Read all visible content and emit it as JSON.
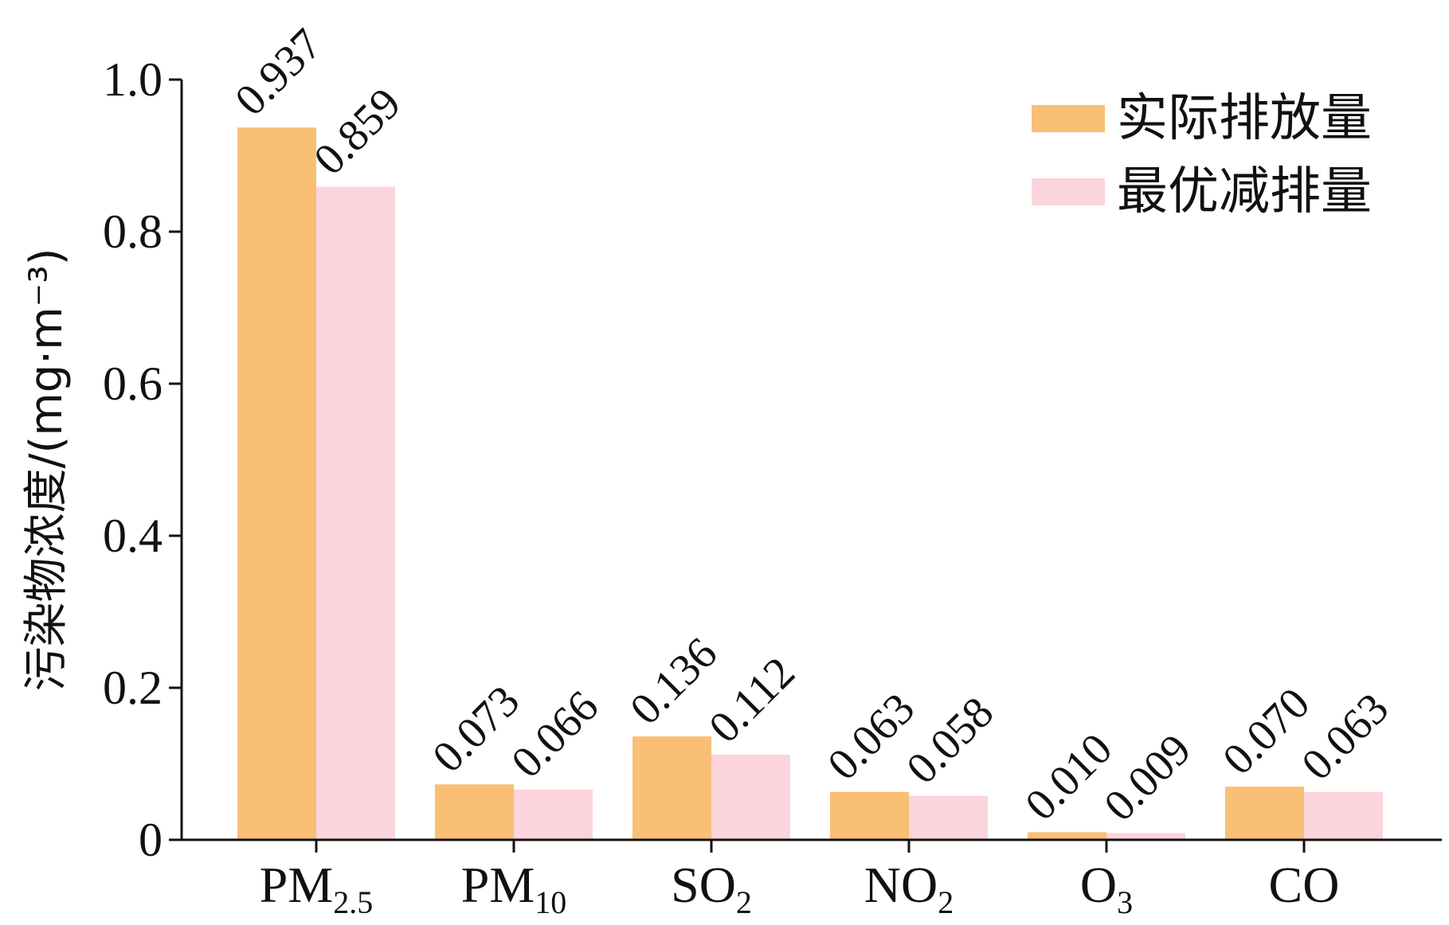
{
  "chart_data": {
    "type": "bar",
    "categories": [
      {
        "main": "PM",
        "sub": "2.5"
      },
      {
        "main": "PM",
        "sub": "10"
      },
      {
        "main": "SO",
        "sub": "2"
      },
      {
        "main": "NO",
        "sub": "2"
      },
      {
        "main": "O",
        "sub": "3"
      },
      {
        "main": "CO",
        "sub": ""
      }
    ],
    "series": [
      {
        "name": "实际排放量",
        "color": "#f9bf75",
        "values": [
          0.937,
          0.073,
          0.136,
          0.063,
          0.01,
          0.07
        ],
        "labels": [
          "0.937",
          "0.073",
          "0.136",
          "0.063",
          "0.010",
          "0.070"
        ]
      },
      {
        "name": "最优减排量",
        "color": "#fcd4dc",
        "values": [
          0.859,
          0.066,
          0.112,
          0.058,
          0.009,
          0.063
        ],
        "labels": [
          "0.859",
          "0.066",
          "0.112",
          "0.058",
          "0.009",
          "0.063"
        ]
      }
    ],
    "ylabel": "污染物浓度/(mg·m⁻³)",
    "ylim": [
      0,
      1.0
    ],
    "yticks": [
      0,
      0.2,
      0.4,
      0.6,
      0.8,
      1.0
    ],
    "ytick_labels": [
      "0",
      "0.2",
      "0.4",
      "0.6",
      "0.8",
      "1.0"
    ],
    "legend_position": "top-right",
    "grid": false
  }
}
